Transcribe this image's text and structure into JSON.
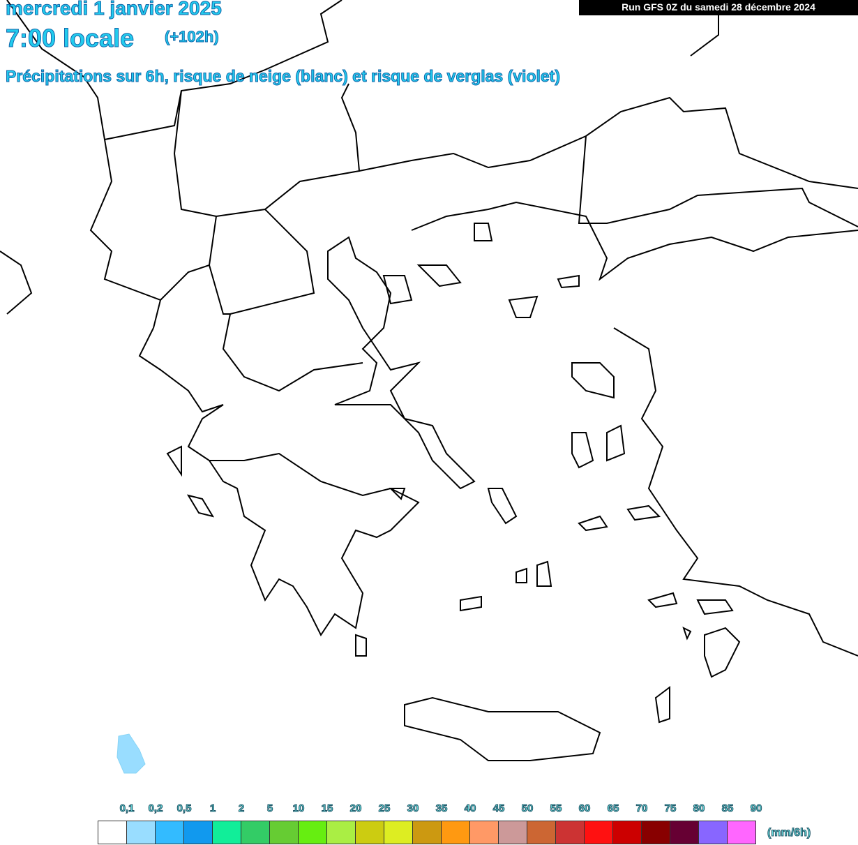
{
  "header": {
    "date": "mercredi 1 janvier 2025",
    "time": "7:00 locale",
    "lead_time": "(+102h)",
    "subtitle": "Précipitations sur 6h, risque de neige (blanc) et risque de verglas (violet)",
    "run": "Run GFS 0Z du samedi 28 décembre 2024"
  },
  "map": {
    "precipitation_areas": [
      {
        "class": "0,1–0,2",
        "color": "#99ddff"
      }
    ]
  },
  "legend": {
    "unit": "(mm/6h)",
    "labels": [
      "0,1",
      "0,2",
      "0,5",
      "1",
      "2",
      "5",
      "10",
      "15",
      "20",
      "25",
      "30",
      "35",
      "40",
      "45",
      "50",
      "55",
      "60",
      "65",
      "70",
      "75",
      "80",
      "85",
      "90"
    ],
    "colors": [
      "#ffffff",
      "#99ddff",
      "#33bbff",
      "#1199ee",
      "#11ee99",
      "#33cc66",
      "#66cc33",
      "#66ee11",
      "#aaee44",
      "#cccc11",
      "#dded22",
      "#cc9911",
      "#ff9911",
      "#ff9966",
      "#cc9999",
      "#cc6633",
      "#cc3333",
      "#ff1111",
      "#cc0000",
      "#880000",
      "#660033",
      "#8866ff",
      "#ff66ff"
    ]
  }
}
